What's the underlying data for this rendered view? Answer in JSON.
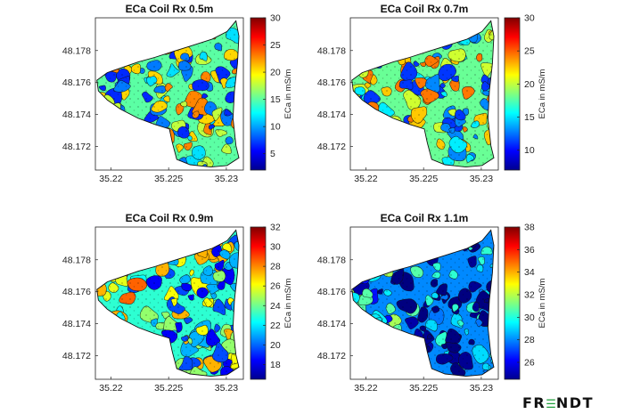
{
  "chart_data": [
    {
      "type": "heatmap",
      "title": "ECa Coil Rx 0.5m",
      "x_ticks": [
        "35.22",
        "35.225",
        "35.23"
      ],
      "y_ticks": [
        "48.178",
        "48.176",
        "48.174",
        "48.172"
      ],
      "colorbar_label": "ECa in mS/m",
      "colorbar_ticks": [
        "30",
        "25",
        "20",
        "15",
        "10",
        "5"
      ],
      "colorbar_range": [
        2,
        30
      ],
      "typical_value": 15
    },
    {
      "type": "heatmap",
      "title": "ECa Coil Rx 0.7m",
      "x_ticks": [
        "35.22",
        "35.225",
        "35.23"
      ],
      "y_ticks": [
        "48.178",
        "48.176",
        "48.174",
        "48.172"
      ],
      "colorbar_label": "ECa in mS/m",
      "colorbar_ticks": [
        "30",
        "25",
        "20",
        "15",
        "10"
      ],
      "colorbar_range": [
        7,
        30
      ],
      "typical_value": 18
    },
    {
      "type": "heatmap",
      "title": "ECa Coil Rx 0.9m",
      "x_ticks": [
        "35.22",
        "35.225",
        "35.23"
      ],
      "y_ticks": [
        "48.178",
        "48.176",
        "48.174",
        "48.172"
      ],
      "colorbar_label": "ECa in mS/m",
      "colorbar_ticks": [
        "32",
        "30",
        "28",
        "26",
        "24",
        "22",
        "20",
        "18"
      ],
      "colorbar_range": [
        16.5,
        32
      ],
      "typical_value": 23
    },
    {
      "type": "heatmap",
      "title": "ECa Coil Rx 1.1m",
      "x_ticks": [
        "35.22",
        "35.225",
        "35.23"
      ],
      "y_ticks": [
        "48.178",
        "48.176",
        "48.174",
        "48.172"
      ],
      "colorbar_label": "ECa in mS/m",
      "colorbar_ticks": [
        "38",
        "36",
        "34",
        "32",
        "30",
        "28",
        "26"
      ],
      "colorbar_range": [
        24.5,
        38
      ],
      "typical_value": 28
    }
  ],
  "logo": {
    "text_before": "FR",
    "text_after": "NDT"
  },
  "colors": {
    "logo_mark": "#1e9e3a",
    "colormap": "jet"
  }
}
